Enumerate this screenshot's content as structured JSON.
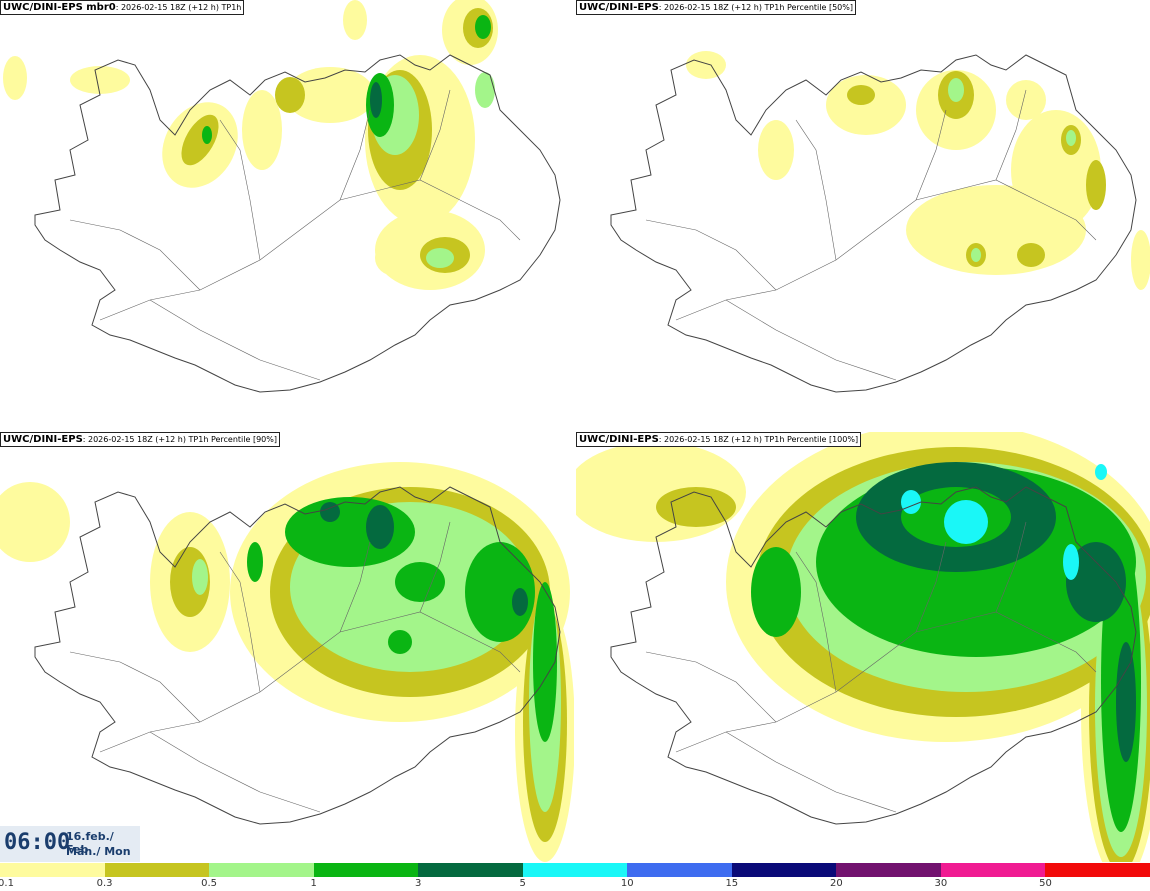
{
  "panels": [
    {
      "model": "UWC/DINI-EPS mbr0",
      "run": ": 2026-02-15 18Z (+12 h)",
      "field": "TP1h"
    },
    {
      "model": "UWC/DINI-EPS",
      "run": ": 2026-02-15 18Z (+12 h)",
      "field": "TP1h Percentile [50%]"
    },
    {
      "model": "UWC/DINI-EPS",
      "run": ": 2026-02-15 18Z (+12 h)",
      "field": "TP1h Percentile [90%]"
    },
    {
      "model": "UWC/DINI-EPS",
      "run": ": 2026-02-15 18Z (+12 h)",
      "field": "TP1h Percentile [100%]"
    }
  ],
  "valid_time": {
    "time": "06:00",
    "date_line1": "16.feb./ Feb",
    "date_line2": "Mán./ Mon"
  },
  "legend": {
    "ticks": [
      "0.1",
      "0.3",
      "0.5",
      "1",
      "3",
      "5",
      "10",
      "15",
      "20",
      "30",
      "50"
    ],
    "colors": [
      "#fefb9e",
      "#c6c520",
      "#a3f58a",
      "#0ab513",
      "#046a3f",
      "#1af7f7",
      "#3e6cf0",
      "#0a0a78",
      "#72126f",
      "#f01b92",
      "#f20a0a"
    ]
  },
  "colors": {
    "coast": "#444444",
    "border": "#222222"
  }
}
